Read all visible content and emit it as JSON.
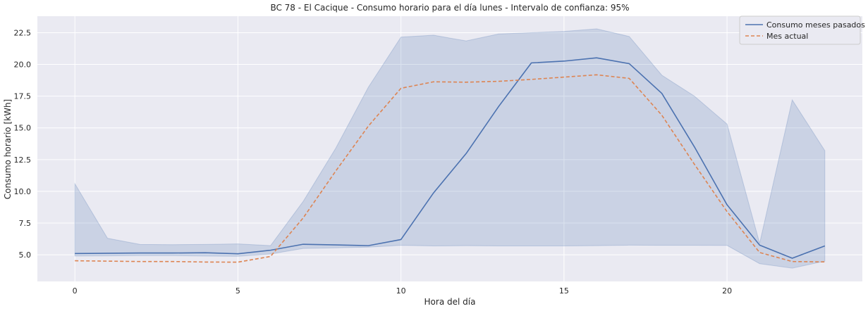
{
  "chart_data": {
    "type": "line",
    "title": "BC 78 - El Cacique - Consumo horario para el día lunes - Intervalo de confianza: 95%",
    "xlabel": "Hora del día",
    "ylabel": "Consumo horario [kWh]",
    "xlim": [
      -1.15,
      24.15
    ],
    "ylim": [
      2.9,
      23.8
    ],
    "xticks": [
      0,
      5,
      10,
      15,
      20
    ],
    "yticks": [
      5.0,
      7.5,
      10.0,
      12.5,
      15.0,
      17.5,
      20.0,
      22.5
    ],
    "ytick_labels": [
      "5.0",
      "7.5",
      "10.0",
      "12.5",
      "15.0",
      "17.5",
      "20.0",
      "22.5"
    ],
    "grid": true,
    "legend_position": "top-right",
    "background": "#eaeaf2",
    "x": [
      0,
      1,
      2,
      3,
      4,
      5,
      6,
      7,
      8,
      9,
      10,
      11,
      12,
      13,
      14,
      15,
      16,
      17,
      18,
      19,
      20,
      21,
      22,
      23
    ],
    "series": [
      {
        "name": "Consumo meses pasados",
        "color": "#4c72b0",
        "style": "solid",
        "values": [
          5.1,
          5.12,
          5.14,
          5.14,
          5.16,
          5.08,
          5.36,
          5.83,
          5.78,
          5.72,
          6.2,
          9.88,
          12.98,
          16.7,
          20.12,
          20.26,
          20.52,
          20.06,
          17.72,
          13.5,
          8.94,
          5.76,
          4.73,
          5.7
        ],
        "ci_lower": [
          4.9,
          4.92,
          4.94,
          4.94,
          4.9,
          4.88,
          5.06,
          5.5,
          5.55,
          5.6,
          5.75,
          5.7,
          5.72,
          5.7,
          5.7,
          5.7,
          5.72,
          5.76,
          5.75,
          5.75,
          5.74,
          4.3,
          3.95,
          4.5
        ],
        "ci_upper": [
          10.6,
          6.3,
          5.82,
          5.8,
          5.82,
          5.86,
          5.72,
          9.2,
          13.4,
          18.2,
          22.15,
          22.3,
          21.85,
          22.4,
          22.5,
          22.6,
          22.8,
          22.2,
          19.15,
          17.5,
          15.3,
          5.9,
          17.2,
          13.2
        ]
      },
      {
        "name": "Mes actual",
        "color": "#dd8452",
        "style": "dashed",
        "values": [
          4.53,
          4.5,
          4.47,
          4.47,
          4.43,
          4.42,
          4.87,
          7.9,
          11.6,
          15.14,
          18.12,
          18.63,
          18.6,
          18.67,
          18.82,
          19.0,
          19.18,
          18.9,
          16.0,
          12.13,
          8.4,
          5.18,
          4.47,
          4.44
        ]
      }
    ]
  }
}
